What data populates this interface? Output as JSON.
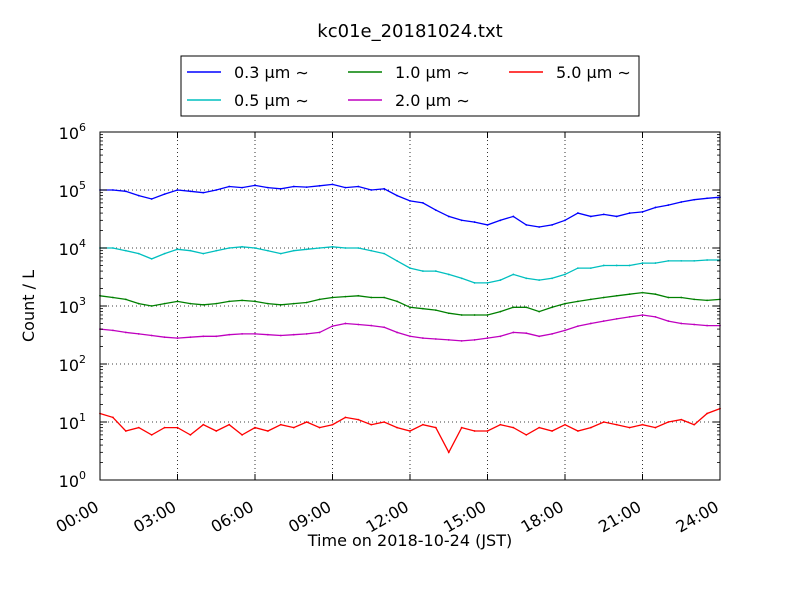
{
  "chart_data": {
    "type": "line",
    "title": "kc01e_20181024.txt",
    "xlabel": "Time on 2018-10-24 (JST)",
    "ylabel": "Count / L",
    "yscale": "log",
    "xlim": [
      "00:00",
      "24:00"
    ],
    "ylim": [
      1,
      1000000
    ],
    "x_ticks": [
      "00:00",
      "03:00",
      "06:00",
      "09:00",
      "12:00",
      "15:00",
      "18:00",
      "21:00",
      "24:00"
    ],
    "y_ticks": [
      {
        "base": "10",
        "exp": "0"
      },
      {
        "base": "10",
        "exp": "1"
      },
      {
        "base": "10",
        "exp": "2"
      },
      {
        "base": "10",
        "exp": "3"
      },
      {
        "base": "10",
        "exp": "4"
      },
      {
        "base": "10",
        "exp": "5"
      },
      {
        "base": "10",
        "exp": "6"
      }
    ],
    "grid": true,
    "legend_position": "top-center",
    "x_hours": [
      0,
      0.5,
      1,
      1.5,
      2,
      2.5,
      3,
      3.5,
      4,
      4.5,
      5,
      5.5,
      6,
      6.5,
      7,
      7.5,
      8,
      8.5,
      9,
      9.5,
      10,
      10.5,
      11,
      11.5,
      12,
      12.5,
      13,
      13.5,
      14,
      14.5,
      15,
      15.5,
      16,
      16.5,
      17,
      17.5,
      18,
      18.5,
      19,
      19.5,
      20,
      20.5,
      21,
      21.5,
      22,
      22.5,
      23,
      23.5,
      24
    ],
    "series": [
      {
        "name": "0.3 μm ∼",
        "color": "#0000ff",
        "values": [
          100000,
          100000,
          95000,
          80000,
          70000,
          85000,
          100000,
          95000,
          90000,
          100000,
          115000,
          110000,
          120000,
          110000,
          105000,
          115000,
          112000,
          118000,
          125000,
          110000,
          115000,
          100000,
          105000,
          80000,
          65000,
          60000,
          45000,
          35000,
          30000,
          28000,
          25000,
          30000,
          35000,
          25000,
          23000,
          25000,
          30000,
          40000,
          35000,
          38000,
          35000,
          40000,
          42000,
          50000,
          55000,
          62000,
          68000,
          72000,
          75000
        ]
      },
      {
        "name": "0.5 μm ∼",
        "color": "#00bfbf",
        "values": [
          10000,
          10000,
          9000,
          8000,
          6500,
          8000,
          9500,
          9000,
          8000,
          9000,
          10000,
          10500,
          10000,
          9000,
          8000,
          9000,
          9500,
          10000,
          10500,
          10000,
          10000,
          9000,
          8000,
          6000,
          4500,
          4000,
          4000,
          3500,
          3000,
          2500,
          2500,
          2800,
          3500,
          3000,
          2800,
          3000,
          3500,
          4500,
          4500,
          5000,
          5000,
          5000,
          5500,
          5500,
          6000,
          6000,
          6000,
          6200,
          6200
        ]
      },
      {
        "name": "1.0 μm ∼",
        "color": "#008000",
        "values": [
          1500,
          1400,
          1300,
          1100,
          1000,
          1100,
          1200,
          1100,
          1050,
          1100,
          1200,
          1250,
          1200,
          1100,
          1050,
          1100,
          1150,
          1300,
          1400,
          1450,
          1500,
          1400,
          1400,
          1200,
          950,
          900,
          850,
          750,
          700,
          700,
          700,
          800,
          950,
          950,
          800,
          950,
          1100,
          1200,
          1300,
          1400,
          1500,
          1600,
          1700,
          1600,
          1400,
          1400,
          1300,
          1250,
          1300
        ]
      },
      {
        "name": "2.0 μm ∼",
        "color": "#bf00bf",
        "values": [
          400,
          380,
          350,
          330,
          310,
          290,
          280,
          290,
          300,
          300,
          320,
          330,
          330,
          320,
          310,
          320,
          330,
          350,
          450,
          500,
          480,
          460,
          430,
          350,
          300,
          280,
          270,
          260,
          250,
          260,
          280,
          300,
          350,
          340,
          300,
          330,
          380,
          450,
          500,
          550,
          600,
          650,
          700,
          650,
          550,
          500,
          480,
          460,
          460
        ]
      },
      {
        "name": "5.0 μm ∼",
        "color": "#ff0000",
        "values": [
          14,
          12,
          7,
          8,
          6,
          8,
          8,
          6,
          9,
          7,
          9,
          6,
          8,
          7,
          9,
          8,
          10,
          8,
          9,
          12,
          11,
          9,
          10,
          8,
          7,
          9,
          8,
          3,
          8,
          7,
          7,
          9,
          8,
          6,
          8,
          7,
          9,
          7,
          8,
          10,
          9,
          8,
          9,
          8,
          10,
          11,
          9,
          14,
          17
        ]
      }
    ]
  }
}
